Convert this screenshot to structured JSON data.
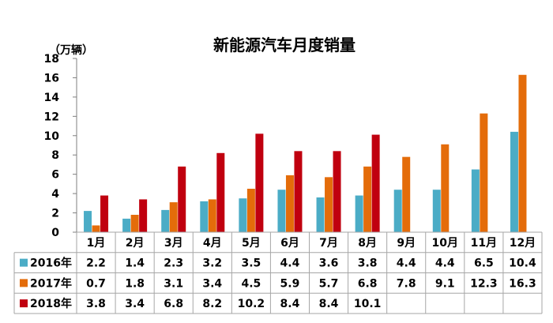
{
  "chart_data": {
    "type": "bar",
    "title": "新能源汽车月度销量",
    "unit_label": "（万辆）",
    "ylim": [
      0,
      18
    ],
    "yticks": [
      0,
      2,
      4,
      6,
      8,
      10,
      12,
      14,
      16,
      18
    ],
    "categories": [
      "1月",
      "2月",
      "3月",
      "4月",
      "5月",
      "6月",
      "7月",
      "8月",
      "9月",
      "10月",
      "11月",
      "12月"
    ],
    "series": [
      {
        "name": "2016年",
        "color": "#4BACC6",
        "values": [
          2.2,
          1.4,
          2.3,
          3.2,
          3.5,
          4.4,
          3.6,
          3.8,
          4.4,
          4.4,
          6.5,
          10.4
        ]
      },
      {
        "name": "2017年",
        "color": "#E46C0A",
        "values": [
          0.7,
          1.8,
          3.1,
          3.4,
          4.5,
          5.9,
          5.7,
          6.8,
          7.8,
          9.1,
          12.3,
          16.3
        ]
      },
      {
        "name": "2018年",
        "color": "#C0000F",
        "values": [
          3.8,
          3.4,
          6.8,
          8.2,
          10.2,
          8.4,
          8.4,
          10.1,
          null,
          null,
          null,
          null
        ]
      }
    ],
    "data_table": true,
    "grid": false,
    "legend": "in-table"
  }
}
